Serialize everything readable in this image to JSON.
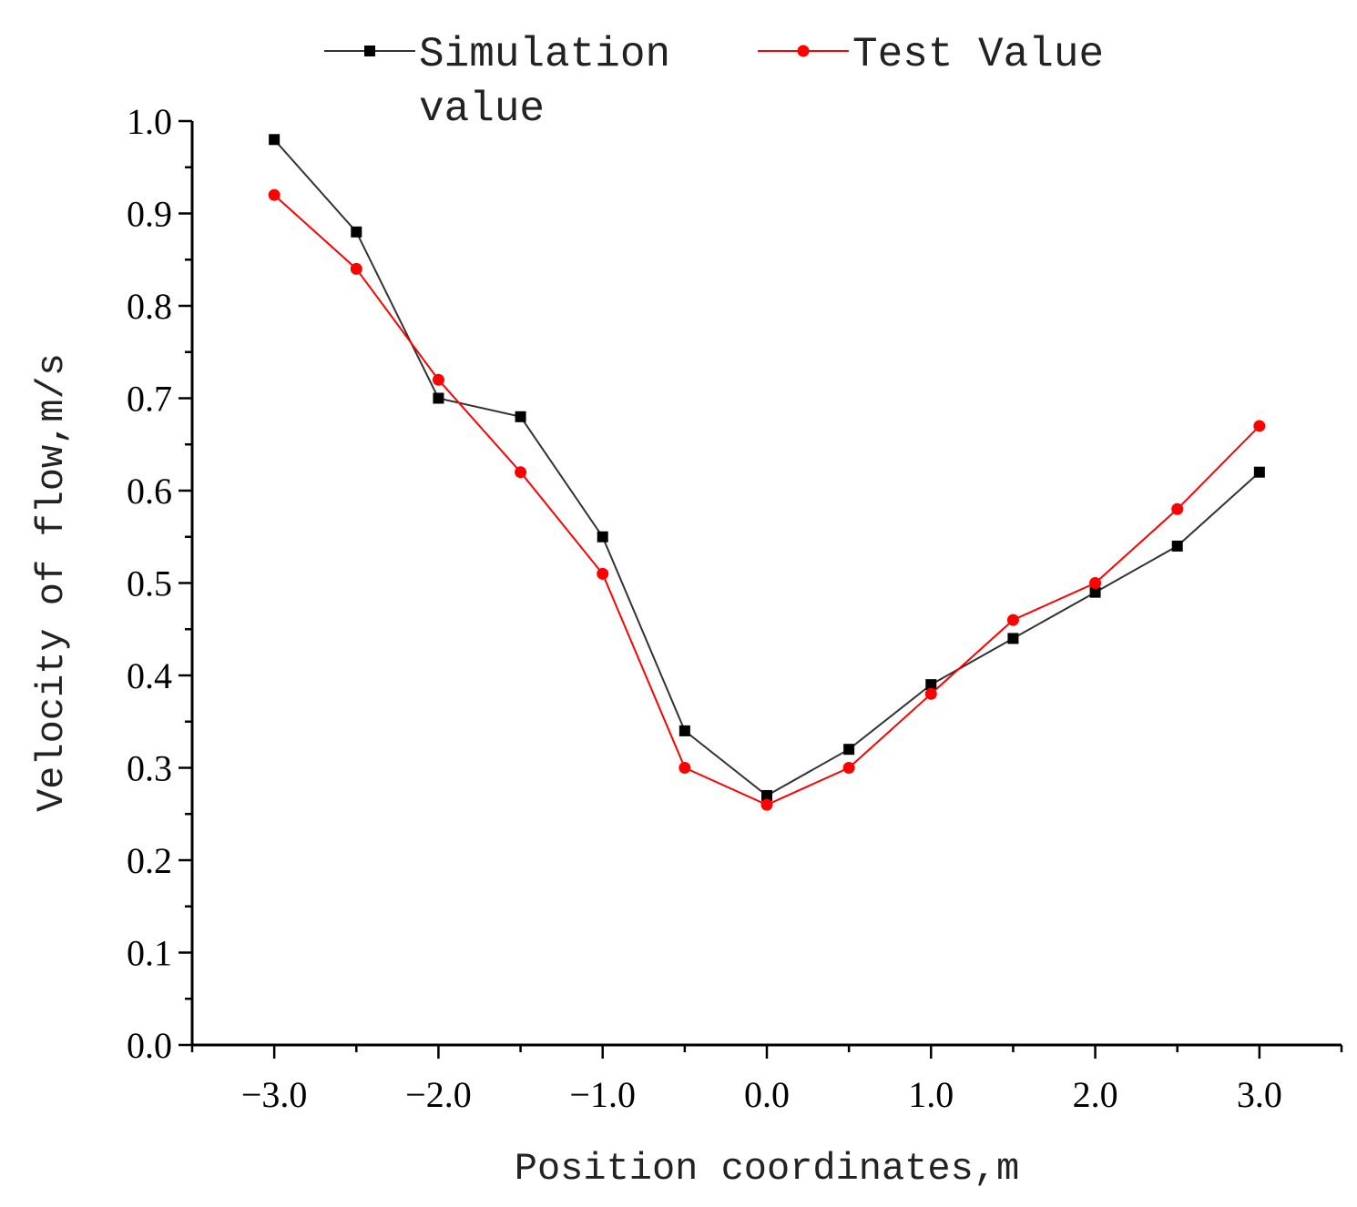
{
  "chart_data": {
    "type": "line",
    "title": "",
    "xlabel": "Position coordinates,m",
    "ylabel": "Velocity of flow,m/s",
    "xlim": [
      -3.5,
      3.5
    ],
    "ylim": [
      0.0,
      1.0
    ],
    "x_ticks": [
      -3.0,
      -2.0,
      -1.0,
      0.0,
      1.0,
      2.0,
      3.0
    ],
    "x_tick_labels": [
      "−3.0",
      "−2.0",
      "−1.0",
      "0.0",
      "1.0",
      "2.0",
      "3.0"
    ],
    "y_ticks": [
      0.0,
      0.1,
      0.2,
      0.3,
      0.4,
      0.5,
      0.6,
      0.7,
      0.8,
      0.9,
      1.0
    ],
    "y_tick_labels": [
      "0.0",
      "0.1",
      "0.2",
      "0.3",
      "0.4",
      "0.5",
      "0.6",
      "0.7",
      "0.8",
      "0.9",
      "1.0"
    ],
    "grid": false,
    "legend_position": "top",
    "x": [
      -3.0,
      -2.5,
      -2.0,
      -1.5,
      -1.0,
      -0.5,
      0.0,
      0.5,
      1.0,
      1.5,
      2.0,
      2.5,
      3.0
    ],
    "series": [
      {
        "name": "Simulation value",
        "legend_lines": [
          "Simulation",
          "value"
        ],
        "color": "#000000",
        "line_color": "#333333",
        "marker": "square",
        "values": [
          0.98,
          0.88,
          0.7,
          0.68,
          0.55,
          0.34,
          0.27,
          0.32,
          0.39,
          0.44,
          0.49,
          0.54,
          0.62
        ]
      },
      {
        "name": "Test Value",
        "legend_lines": [
          "Test Value"
        ],
        "color": "#ff0000",
        "line_color": "#ff0000",
        "marker": "circle",
        "values": [
          0.92,
          0.84,
          0.72,
          0.62,
          0.51,
          0.3,
          0.26,
          0.3,
          0.38,
          0.46,
          0.5,
          0.58,
          0.67
        ]
      }
    ]
  }
}
